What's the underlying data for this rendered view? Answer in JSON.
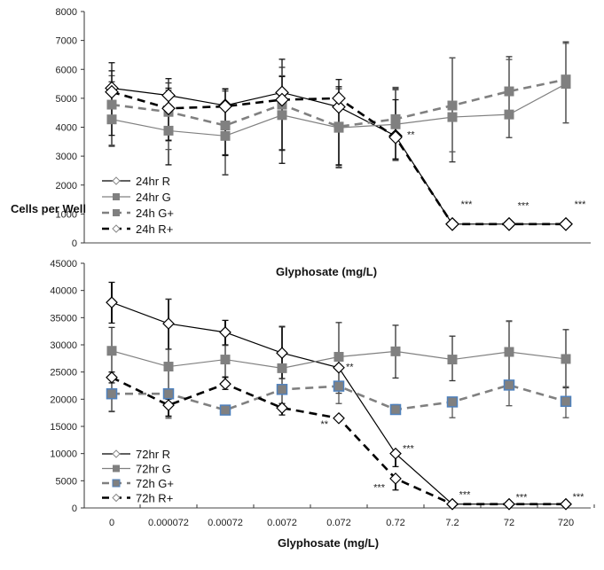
{
  "chart_data": [
    {
      "type": "line",
      "panel": "top",
      "title": "",
      "xlabel": "Glyphosate (mg/L)",
      "ylabel": "Cells per Well",
      "categories": [
        "0",
        "0.000072",
        "0.00072",
        "0.0072",
        "0.072",
        "0.72",
        "7.2",
        "72",
        "720"
      ],
      "ylim": [
        0,
        8000
      ],
      "yticks": [
        0,
        1000,
        2000,
        3000,
        4000,
        5000,
        6000,
        7000,
        8000
      ],
      "legend_position": "bottom-left",
      "series": [
        {
          "name": "24hr R",
          "color": "#000000",
          "dash": "solid",
          "marker": "diamond-open",
          "values": [
            5350,
            5100,
            4750,
            5200,
            4700,
            3700,
            650,
            650,
            650
          ],
          "err_hi": [
            880,
            580,
            580,
            1150,
            950,
            1600,
            0,
            0,
            0
          ],
          "err_lo": [
            2000,
            2400,
            2400,
            2000,
            2100,
            800,
            0,
            0,
            0
          ]
        },
        {
          "name": "24hr G",
          "color": "#808080",
          "dash": "solid",
          "marker": "square-filled",
          "values": [
            4270,
            3880,
            3700,
            4420,
            3980,
            4100,
            4350,
            4440,
            5500
          ],
          "err_hi": [
            1300,
            1650,
            1550,
            1650,
            1350,
            1250,
            2050,
            2000,
            1450
          ],
          "err_lo": [
            930,
            350,
            650,
            1200,
            1300,
            1250,
            1550,
            800,
            1350
          ]
        },
        {
          "name": "24h G+",
          "color": "#808080",
          "dash": "dashed",
          "marker": "square-filled",
          "values": [
            4780,
            4530,
            4060,
            4780,
            4020,
            4280,
            4750,
            5240,
            5650
          ],
          "err_hi": [
            1000,
            750,
            1200,
            1000,
            1050,
            1100,
            1650,
            1100,
            1250
          ],
          "err_lo": [
            1400,
            1300,
            1700,
            1550,
            1400,
            1400,
            1600,
            1600,
            1500
          ]
        },
        {
          "name": "24h R+",
          "color": "#000000",
          "dash": "dashed",
          "marker": "diamond-open",
          "values": [
            5220,
            4650,
            4720,
            4950,
            5000,
            3650,
            650,
            650,
            650
          ],
          "err_hi": [
            730,
            700,
            600,
            800,
            400,
            1300,
            0,
            0,
            0
          ],
          "err_lo": [
            1500,
            1100,
            1700,
            2200,
            2300,
            750,
            0,
            0,
            0
          ]
        }
      ],
      "annotations": [
        {
          "text": "**",
          "category": "0.72",
          "y": 3750
        },
        {
          "text": "***",
          "category": "7.2",
          "y": 1350
        },
        {
          "text": "***",
          "category": "72",
          "y": 1300
        },
        {
          "text": "***",
          "category": "720",
          "y": 1350
        }
      ]
    },
    {
      "type": "line",
      "panel": "bottom",
      "title": "Glyphosate (mg/L)",
      "xlabel": "Glyphosate (mg/L)",
      "ylabel": "",
      "categories": [
        "0",
        "0.000072",
        "0.00072",
        "0.0072",
        "0.072",
        "0.72",
        "7.2",
        "72",
        "720"
      ],
      "ylim": [
        0,
        45000
      ],
      "yticks": [
        0,
        5000,
        10000,
        15000,
        20000,
        25000,
        30000,
        35000,
        40000,
        45000
      ],
      "legend_position": "bottom-left",
      "series": [
        {
          "name": "72hr R",
          "color": "#000000",
          "dash": "solid",
          "marker": "diamond-open",
          "values": [
            37800,
            33900,
            32300,
            28500,
            25800,
            10000,
            700,
            700,
            700
          ],
          "err_hi": [
            3700,
            4500,
            2200,
            4800,
            0,
            0,
            0,
            0,
            0
          ],
          "err_lo": [
            3800,
            4700,
            2300,
            4700,
            0,
            2400,
            0,
            0,
            0
          ]
        },
        {
          "name": "72hr G",
          "color": "#808080",
          "dash": "solid",
          "marker": "square-filled",
          "values": [
            28900,
            26000,
            27300,
            25700,
            27800,
            28800,
            27300,
            28700,
            27400
          ],
          "err_hi": [
            4300,
            12400,
            2600,
            7700,
            6300,
            4800,
            4300,
            5700,
            5400
          ],
          "err_lo": [
            11200,
            9200,
            3300,
            7500,
            6700,
            4900,
            3900,
            6100,
            5300
          ]
        },
        {
          "name": "72h G+",
          "color": "#808080",
          "dash": "dashed",
          "marker": "square-filled-blue-outline",
          "values": [
            21000,
            21000,
            18000,
            21800,
            22400,
            18100,
            19500,
            22600,
            19600
          ],
          "err_hi": [
            0,
            0,
            0,
            0,
            0,
            900,
            0,
            11700,
            2700
          ],
          "err_lo": [
            3200,
            4500,
            0,
            3500,
            3200,
            800,
            2900,
            3800,
            3000
          ]
        },
        {
          "name": "72h R+",
          "color": "#000000",
          "dash": "dashed",
          "marker": "diamond-open",
          "values": [
            24000,
            18900,
            22800,
            18400,
            16500,
            5400,
            700,
            700,
            700
          ],
          "err_hi": [
            1000,
            1100,
            1300,
            800,
            0,
            0,
            0,
            0,
            0
          ],
          "err_lo": [
            1000,
            2000,
            1000,
            1300,
            0,
            2100,
            0,
            0,
            0
          ]
        }
      ],
      "annotations": [
        {
          "text": "**",
          "category": "0.072",
          "y": 26000,
          "side": "right"
        },
        {
          "text": "**",
          "category": "0.072",
          "y": 15500,
          "side": "left"
        },
        {
          "text": "***",
          "category": "0.72",
          "y": 11000,
          "side": "right"
        },
        {
          "text": "***",
          "category": "0.72",
          "y": 3800,
          "side": "left"
        },
        {
          "text": "***",
          "category": "7.2",
          "y": 2500
        },
        {
          "text": "***",
          "category": "72",
          "y": 2000
        },
        {
          "text": "***",
          "category": "720",
          "y": 2100
        }
      ]
    }
  ],
  "labels": {
    "ylabel": "Cells per Well",
    "top_xlabel": "Glyphosate (mg/L)",
    "bottom_xlabel": "Glyphosate (mg/L)"
  },
  "colors": {
    "black": "#000000",
    "gray": "#808080",
    "blue_outline": "#4f81bd"
  }
}
